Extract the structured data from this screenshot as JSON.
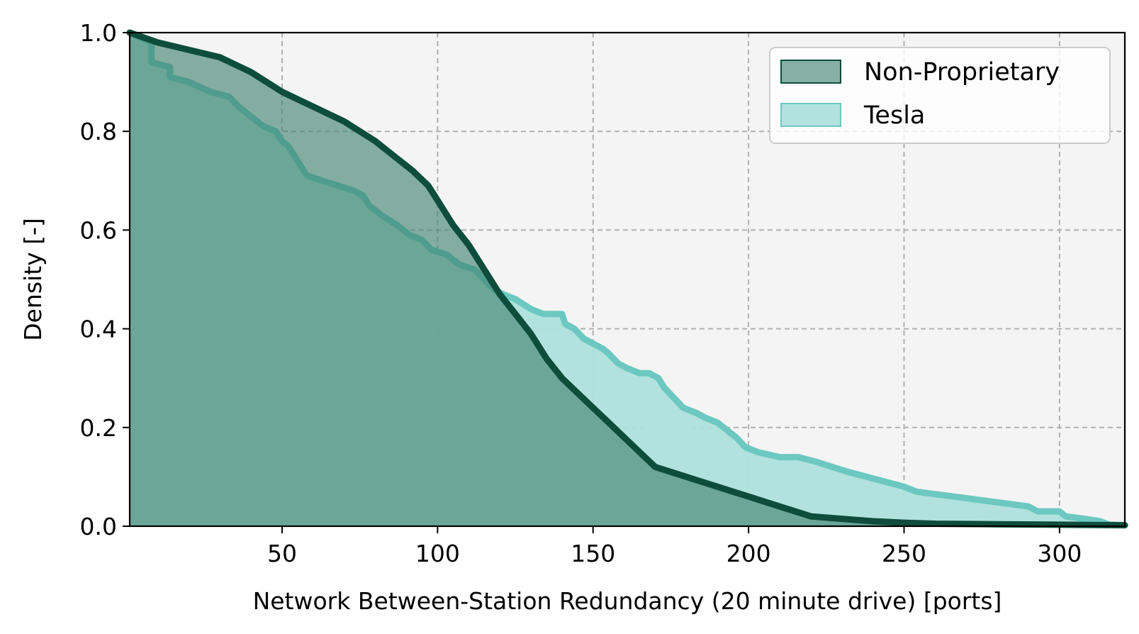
{
  "chart_data": {
    "type": "area",
    "title": "",
    "xlabel": "Network Between-Station Redundancy (20 minute drive) [ports]",
    "ylabel": "Density [-]",
    "xlim": [
      1,
      321
    ],
    "ylim": [
      0,
      1.0
    ],
    "x_ticks": [
      50,
      100,
      150,
      200,
      250,
      300
    ],
    "y_ticks": [
      0.0,
      0.2,
      0.4,
      0.6,
      0.8,
      1.0
    ],
    "x_tick_labels": [
      "50",
      "100",
      "150",
      "200",
      "250",
      "300"
    ],
    "y_tick_labels": [
      "0.0",
      "0.2",
      "0.4",
      "0.6",
      "0.8",
      "1.0"
    ],
    "grid": true,
    "legend_position": "top-right",
    "plot_background": "#f4f4f4",
    "series": [
      {
        "name": "Tesla",
        "fill_color": "#aee0dc",
        "line_color": "#6cc8c0",
        "points": [
          [
            1,
            1.0
          ],
          [
            8,
            0.98
          ],
          [
            8,
            0.94
          ],
          [
            14,
            0.93
          ],
          [
            14,
            0.91
          ],
          [
            20,
            0.9
          ],
          [
            27,
            0.88
          ],
          [
            33,
            0.87
          ],
          [
            36,
            0.85
          ],
          [
            40,
            0.83
          ],
          [
            44,
            0.81
          ],
          [
            48,
            0.8
          ],
          [
            50,
            0.78
          ],
          [
            52,
            0.77
          ],
          [
            56,
            0.73
          ],
          [
            58,
            0.71
          ],
          [
            63,
            0.7
          ],
          [
            68,
            0.69
          ],
          [
            73,
            0.68
          ],
          [
            76,
            0.67
          ],
          [
            78,
            0.65
          ],
          [
            82,
            0.63
          ],
          [
            87,
            0.61
          ],
          [
            91,
            0.59
          ],
          [
            95,
            0.58
          ],
          [
            98,
            0.56
          ],
          [
            103,
            0.55
          ],
          [
            107,
            0.53
          ],
          [
            112,
            0.52
          ],
          [
            115,
            0.5
          ],
          [
            118,
            0.48
          ],
          [
            121,
            0.47
          ],
          [
            125,
            0.46
          ],
          [
            130,
            0.44
          ],
          [
            134,
            0.43
          ],
          [
            140,
            0.43
          ],
          [
            141,
            0.41
          ],
          [
            144,
            0.4
          ],
          [
            147,
            0.38
          ],
          [
            150,
            0.37
          ],
          [
            153,
            0.36
          ],
          [
            155,
            0.35
          ],
          [
            158,
            0.33
          ],
          [
            161,
            0.32
          ],
          [
            165,
            0.31
          ],
          [
            168,
            0.31
          ],
          [
            171,
            0.3
          ],
          [
            173,
            0.28
          ],
          [
            176,
            0.26
          ],
          [
            179,
            0.24
          ],
          [
            183,
            0.23
          ],
          [
            186,
            0.22
          ],
          [
            190,
            0.21
          ],
          [
            194,
            0.19
          ],
          [
            196,
            0.18
          ],
          [
            199,
            0.16
          ],
          [
            203,
            0.15
          ],
          [
            210,
            0.14
          ],
          [
            216,
            0.14
          ],
          [
            222,
            0.13
          ],
          [
            227,
            0.12
          ],
          [
            232,
            0.11
          ],
          [
            238,
            0.1
          ],
          [
            244,
            0.09
          ],
          [
            250,
            0.08
          ],
          [
            254,
            0.07
          ],
          [
            260,
            0.065
          ],
          [
            266,
            0.06
          ],
          [
            272,
            0.055
          ],
          [
            278,
            0.05
          ],
          [
            284,
            0.045
          ],
          [
            290,
            0.04
          ],
          [
            293,
            0.03
          ],
          [
            300,
            0.03
          ],
          [
            302,
            0.02
          ],
          [
            308,
            0.015
          ],
          [
            313,
            0.01
          ],
          [
            316,
            0.003
          ],
          [
            321,
            0.002
          ]
        ]
      },
      {
        "name": "Non-Proprietary",
        "fill_color": "#3f8170",
        "line_color": "#0e4d3b",
        "points": [
          [
            1,
            1.0
          ],
          [
            10,
            0.98
          ],
          [
            20,
            0.965
          ],
          [
            30,
            0.95
          ],
          [
            40,
            0.92
          ],
          [
            50,
            0.88
          ],
          [
            60,
            0.85
          ],
          [
            70,
            0.82
          ],
          [
            80,
            0.78
          ],
          [
            86,
            0.75
          ],
          [
            92,
            0.72
          ],
          [
            97,
            0.69
          ],
          [
            100,
            0.66
          ],
          [
            105,
            0.61
          ],
          [
            110,
            0.57
          ],
          [
            115,
            0.52
          ],
          [
            120,
            0.47
          ],
          [
            125,
            0.43
          ],
          [
            130,
            0.39
          ],
          [
            135,
            0.34
          ],
          [
            140,
            0.3
          ],
          [
            145,
            0.27
          ],
          [
            150,
            0.24
          ],
          [
            155,
            0.21
          ],
          [
            160,
            0.18
          ],
          [
            165,
            0.15
          ],
          [
            170,
            0.12
          ],
          [
            175,
            0.11
          ],
          [
            180,
            0.1
          ],
          [
            185,
            0.09
          ],
          [
            190,
            0.08
          ],
          [
            195,
            0.07
          ],
          [
            200,
            0.06
          ],
          [
            205,
            0.05
          ],
          [
            210,
            0.04
          ],
          [
            215,
            0.03
          ],
          [
            220,
            0.02
          ],
          [
            230,
            0.015
          ],
          [
            240,
            0.01
          ],
          [
            250,
            0.007
          ],
          [
            260,
            0.005
          ],
          [
            280,
            0.004
          ],
          [
            300,
            0.003
          ],
          [
            321,
            0.002
          ]
        ]
      }
    ]
  }
}
